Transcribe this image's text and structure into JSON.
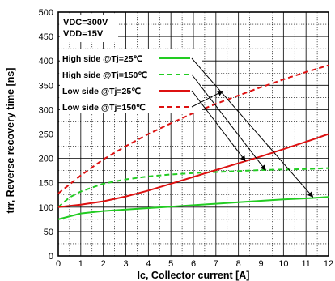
{
  "chart_data": {
    "type": "line",
    "xlabel": "Ic, Collector current [A]",
    "ylabel": "trr, Reverse recovery time [ns]",
    "xlim": [
      0,
      12
    ],
    "ylim": [
      0,
      500
    ],
    "xticks": [
      0,
      1,
      2,
      3,
      4,
      5,
      6,
      7,
      8,
      9,
      10,
      11,
      12
    ],
    "yticks": [
      0,
      50,
      100,
      150,
      200,
      250,
      300,
      350,
      400,
      450,
      500
    ],
    "grid": true,
    "conditions": [
      "VDC=300V",
      "VDD=15V"
    ],
    "legend_position": "top-left",
    "series": [
      {
        "name": "High side @Tj=25℃",
        "color": "#22cc22",
        "dash": "solid",
        "x": [
          0,
          1,
          2,
          3,
          4,
          5,
          6,
          7,
          8,
          9,
          10,
          11,
          12
        ],
        "y": [
          75,
          87,
          92,
          95,
          98,
          101,
          104,
          107,
          110,
          113,
          116,
          118,
          121
        ]
      },
      {
        "name": "High side @Tj=150℃",
        "color": "#22cc22",
        "dash": "dashed",
        "x": [
          0,
          0.5,
          1,
          2,
          3,
          4,
          5,
          6,
          7,
          8,
          9,
          10,
          11,
          12
        ],
        "y": [
          100,
          120,
          132,
          148,
          157,
          163,
          167,
          170,
          172,
          174,
          176,
          177,
          178,
          180
        ]
      },
      {
        "name": "Low side @Tj=25℃",
        "color": "#dd1111",
        "dash": "solid",
        "x": [
          0,
          1,
          2,
          3,
          4,
          5,
          6,
          7,
          8,
          9,
          10,
          11,
          12
        ],
        "y": [
          100,
          105,
          112,
          122,
          134,
          148,
          162,
          176,
          190,
          204,
          219,
          234,
          250
        ]
      },
      {
        "name": "Low side @Tj=150℃",
        "color": "#dd1111",
        "dash": "dashed",
        "x": [
          0,
          1,
          2,
          3,
          4,
          5,
          6,
          7,
          8,
          9,
          10,
          11,
          12
        ],
        "y": [
          128,
          165,
          198,
          225,
          250,
          272,
          293,
          312,
          329,
          346,
          362,
          377,
          391
        ]
      }
    ]
  }
}
